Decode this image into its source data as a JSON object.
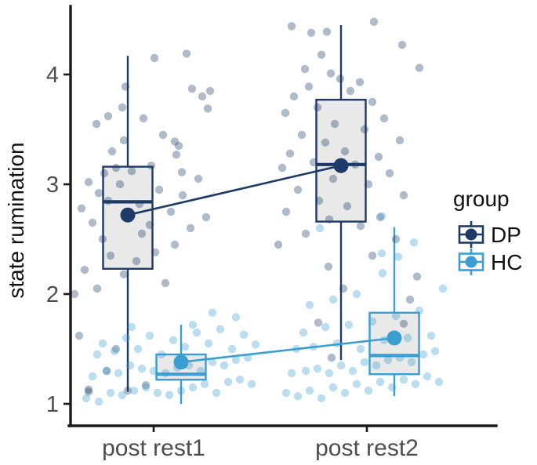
{
  "figure": {
    "background": "#ffffff"
  },
  "y_axis": {
    "title": "state rumination",
    "tick_labels": [
      "1",
      "2",
      "3",
      "4"
    ],
    "tick_values": [
      1,
      2,
      3,
      4
    ]
  },
  "x_axis": {
    "categories": [
      "post rest1",
      "post rest2"
    ]
  },
  "legend": {
    "title": "group",
    "entries": [
      {
        "label": "DP",
        "color": "#1d3b66"
      },
      {
        "label": "HC",
        "color": "#3a9ed3"
      }
    ]
  },
  "chart_data": {
    "type": "boxplot",
    "subtype": "grouped boxplot with jittered points and group means",
    "title": "",
    "xlabel": "",
    "ylabel": "state rumination",
    "categories": [
      "post rest1",
      "post rest2"
    ],
    "ylim": [
      0.85,
      4.6
    ],
    "grid": false,
    "legend_position": "right",
    "groups": [
      {
        "name": "DP",
        "color": "#1d3b66",
        "point_color": "rgba(29,59,102,0.35)"
      },
      {
        "name": "HC",
        "color": "#3a9ed3",
        "point_color": "rgba(58,158,211,0.35)"
      }
    ],
    "boxes": [
      {
        "group": "DP",
        "category": "post rest1",
        "whisker_low": 1.11,
        "q1": 2.23,
        "median": 2.84,
        "q3": 3.16,
        "whisker_high": 4.17,
        "mean": 2.72
      },
      {
        "group": "HC",
        "category": "post rest1",
        "whisker_low": 1.0,
        "q1": 1.22,
        "median": 1.27,
        "q3": 1.45,
        "whisker_high": 1.72,
        "mean": 1.38
      },
      {
        "group": "DP",
        "category": "post rest2",
        "whisker_low": 1.4,
        "q1": 2.66,
        "median": 3.18,
        "q3": 3.77,
        "whisker_high": 4.45,
        "mean": 3.17
      },
      {
        "group": "HC",
        "category": "post rest2",
        "whisker_low": 1.07,
        "q1": 1.27,
        "median": 1.44,
        "q3": 1.83,
        "whisker_high": 2.61,
        "mean": 1.6
      }
    ],
    "mean_lines": [
      {
        "group": "DP",
        "values": [
          2.72,
          3.17
        ]
      },
      {
        "group": "HC",
        "values": [
          1.38,
          1.6
        ]
      }
    ],
    "jitter_points": [
      {
        "group": "DP",
        "category_index": 0,
        "points": [
          [
            -83,
            1.13
          ],
          [
            -33,
            1.12
          ],
          [
            -60,
            1.3
          ],
          [
            -95,
            1.62
          ],
          [
            -10,
            1.17
          ],
          [
            -48,
            1.5
          ],
          [
            -101,
            2.0
          ],
          [
            -72,
            2.05
          ],
          [
            15,
            2.1
          ],
          [
            -38,
            2.18
          ],
          [
            -88,
            2.22
          ],
          [
            -22,
            2.3
          ],
          [
            -55,
            2.35
          ],
          [
            2,
            2.38
          ],
          [
            27,
            2.45
          ],
          [
            -65,
            2.5
          ],
          [
            -15,
            2.55
          ],
          [
            47,
            2.6
          ],
          [
            -5,
            2.63
          ],
          [
            -78,
            2.65
          ],
          [
            67,
            2.7
          ],
          [
            -35,
            2.72
          ],
          [
            22,
            2.75
          ],
          [
            -92,
            2.78
          ],
          [
            -18,
            2.82
          ],
          [
            -58,
            2.85
          ],
          [
            37,
            2.9
          ],
          [
            -70,
            2.92
          ],
          [
            7,
            2.95
          ],
          [
            -43,
            3.0
          ],
          [
            -83,
            3.02
          ],
          [
            57,
            3.05
          ],
          [
            -63,
            3.1
          ],
          [
            -28,
            3.12
          ],
          [
            -48,
            3.15
          ],
          [
            -3,
            3.17
          ],
          [
            -53,
            3.3
          ],
          [
            32,
            3.35
          ],
          [
            -38,
            3.4
          ],
          [
            12,
            3.45
          ],
          [
            -73,
            3.55
          ],
          [
            -13,
            3.6
          ],
          [
            -58,
            3.62
          ],
          [
            49,
            3.87
          ],
          [
            62,
            3.8
          ],
          [
            72,
            3.85
          ],
          [
            69,
            3.69
          ],
          [
            27,
            3.39
          ],
          [
            29,
            3.27
          ],
          [
            36,
            3.11
          ],
          [
            -36,
            3.89
          ],
          [
            -40,
            3.7
          ],
          [
            1,
            4.15
          ],
          [
            42,
            4.19
          ],
          [
            -83,
            1.11
          ]
        ]
      },
      {
        "group": "HC",
        "category_index": 0,
        "points": [
          [
            -86,
            1.05
          ],
          [
            -70,
            1.02
          ],
          [
            -55,
            1.1
          ],
          [
            -40,
            1.08
          ],
          [
            -25,
            1.12
          ],
          [
            -10,
            1.15
          ],
          [
            5,
            1.1
          ],
          [
            20,
            1.08
          ],
          [
            35,
            1.12
          ],
          [
            50,
            1.15
          ],
          [
            65,
            1.18
          ],
          [
            80,
            1.1
          ],
          [
            95,
            1.2
          ],
          [
            110,
            1.22
          ],
          [
            125,
            1.18
          ],
          [
            -78,
            1.25
          ],
          [
            -60,
            1.3
          ],
          [
            -45,
            1.28
          ],
          [
            -30,
            1.35
          ],
          [
            -15,
            1.32
          ],
          [
            0,
            1.3
          ],
          [
            15,
            1.28
          ],
          [
            30,
            1.33
          ],
          [
            45,
            1.35
          ],
          [
            60,
            1.3
          ],
          [
            75,
            1.38
          ],
          [
            90,
            1.35
          ],
          [
            105,
            1.4
          ],
          [
            120,
            1.42
          ],
          [
            -72,
            1.45
          ],
          [
            -50,
            1.48
          ],
          [
            -20,
            1.5
          ],
          [
            10,
            1.45
          ],
          [
            40,
            1.52
          ],
          [
            70,
            1.55
          ],
          [
            100,
            1.5
          ],
          [
            -65,
            1.55
          ],
          [
            -35,
            1.6
          ],
          [
            -5,
            1.62
          ],
          [
            25,
            1.58
          ],
          [
            55,
            1.65
          ],
          [
            85,
            1.68
          ],
          [
            115,
            1.63
          ],
          [
            -28,
            1.7
          ],
          [
            50,
            1.72
          ],
          [
            105,
            1.79
          ],
          [
            75,
            1.83
          ],
          [
            130,
            1.54
          ]
        ]
      },
      {
        "group": "DP",
        "category_index": 1,
        "points": [
          [
            -96,
            4.44
          ],
          [
            9,
            4.48
          ],
          [
            -71,
            4.38
          ],
          [
            -51,
            4.39
          ],
          [
            45,
            4.27
          ],
          [
            -58,
            4.18
          ],
          [
            67,
            4.06
          ],
          [
            -79,
            4.05
          ],
          [
            -46,
            4.01
          ],
          [
            -34,
            3.96
          ],
          [
            -74,
            3.89
          ],
          [
            -9,
            3.93
          ],
          [
            -93,
            3.8
          ],
          [
            -21,
            3.85
          ],
          [
            7,
            3.75
          ],
          [
            -63,
            3.7
          ],
          [
            -104,
            3.65
          ],
          [
            22,
            3.6
          ],
          [
            -41,
            3.55
          ],
          [
            -3,
            3.5
          ],
          [
            -83,
            3.45
          ],
          [
            42,
            3.4
          ],
          [
            -53,
            3.38
          ],
          [
            -28,
            3.3
          ],
          [
            -98,
            3.28
          ],
          [
            15,
            3.25
          ],
          [
            -68,
            3.2
          ],
          [
            -15,
            3.18
          ],
          [
            -108,
            3.15
          ],
          [
            29,
            3.1
          ],
          [
            -43,
            3.05
          ],
          [
            2,
            3.0
          ],
          [
            -88,
            2.95
          ],
          [
            47,
            2.9
          ],
          [
            -61,
            2.85
          ],
          [
            -25,
            2.8
          ],
          [
            -103,
            2.75
          ],
          [
            17,
            2.7
          ],
          [
            -48,
            2.68
          ],
          [
            -8,
            2.62
          ],
          [
            -78,
            2.55
          ],
          [
            37,
            2.5
          ],
          [
            -113,
            2.45
          ],
          [
            7,
            2.35
          ],
          [
            -49,
            2.25
          ],
          [
            64,
            2.16
          ],
          [
            -62,
            1.74
          ],
          [
            47,
            1.73
          ],
          [
            -45,
            1.42
          ],
          [
            -30,
            2.05
          ],
          [
            55,
            1.95
          ]
        ]
      },
      {
        "group": "HC",
        "category_index": 1,
        "points": [
          [
            -103,
            1.1
          ],
          [
            -88,
            1.07
          ],
          [
            -73,
            1.12
          ],
          [
            -58,
            1.05
          ],
          [
            -43,
            1.15
          ],
          [
            -28,
            1.1
          ],
          [
            -13,
            1.18
          ],
          [
            2,
            1.12
          ],
          [
            17,
            1.2
          ],
          [
            32,
            1.15
          ],
          [
            47,
            1.22
          ],
          [
            62,
            1.18
          ],
          [
            77,
            1.25
          ],
          [
            92,
            1.2
          ],
          [
            -96,
            1.28
          ],
          [
            -78,
            1.3
          ],
          [
            -63,
            1.32
          ],
          [
            -48,
            1.28
          ],
          [
            -33,
            1.35
          ],
          [
            -18,
            1.3
          ],
          [
            -3,
            1.38
          ],
          [
            12,
            1.35
          ],
          [
            27,
            1.4
          ],
          [
            42,
            1.42
          ],
          [
            57,
            1.38
          ],
          [
            72,
            1.45
          ],
          [
            87,
            1.48
          ],
          [
            -90,
            1.5
          ],
          [
            -68,
            1.52
          ],
          [
            -38,
            1.55
          ],
          [
            -8,
            1.5
          ],
          [
            22,
            1.58
          ],
          [
            52,
            1.6
          ],
          [
            82,
            1.62
          ],
          [
            -81,
            1.65
          ],
          [
            -53,
            1.7
          ],
          [
            -23,
            1.72
          ],
          [
            7,
            1.75
          ],
          [
            37,
            1.8
          ],
          [
            67,
            1.85
          ],
          [
            -73,
            1.9
          ],
          [
            -43,
            1.95
          ],
          [
            -13,
            2.0
          ],
          [
            20,
            2.19
          ],
          [
            40,
            2.34
          ],
          [
            19,
            2.37
          ],
          [
            19,
            2.71
          ],
          [
            -60,
            2.6
          ],
          [
            97,
            2.05
          ],
          [
            60,
            2.47
          ]
        ]
      }
    ],
    "style": {
      "box_fill": "#e9e9e9",
      "axis_color": "#1a1a1a",
      "tick_label_color": "#4d4d4d"
    }
  }
}
